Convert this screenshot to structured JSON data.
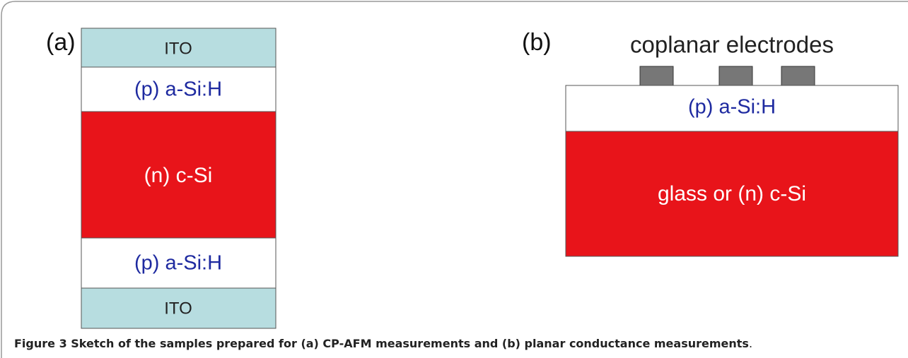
{
  "figure": {
    "panel_a": {
      "label": "(a)",
      "layers": [
        "ITO",
        "(p) a-Si:H",
        "(n) c-Si",
        "(p) a-Si:H",
        "ITO"
      ]
    },
    "panel_b": {
      "label": "(b)",
      "electrodes_label": "coplanar electrodes",
      "layers": [
        "(p) a-Si:H",
        "glass or (n) c-Si"
      ]
    },
    "caption": {
      "bold": "Figure 3 Sketch of the samples prepared for (a) CP-AFM measurements and (b) planar conductance measurements",
      "end": "."
    }
  }
}
